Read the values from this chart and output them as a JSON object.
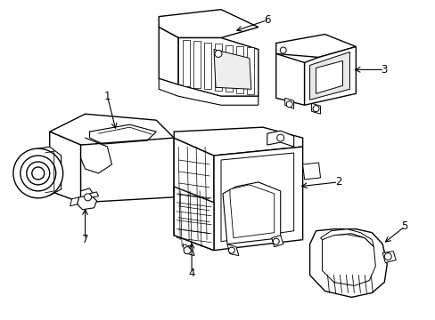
{
  "background_color": "#ffffff",
  "line_color": "#000000",
  "line_width": 1.0,
  "label_fontsize": 8.5,
  "figsize": [
    4.89,
    3.6
  ],
  "dpi": 100
}
